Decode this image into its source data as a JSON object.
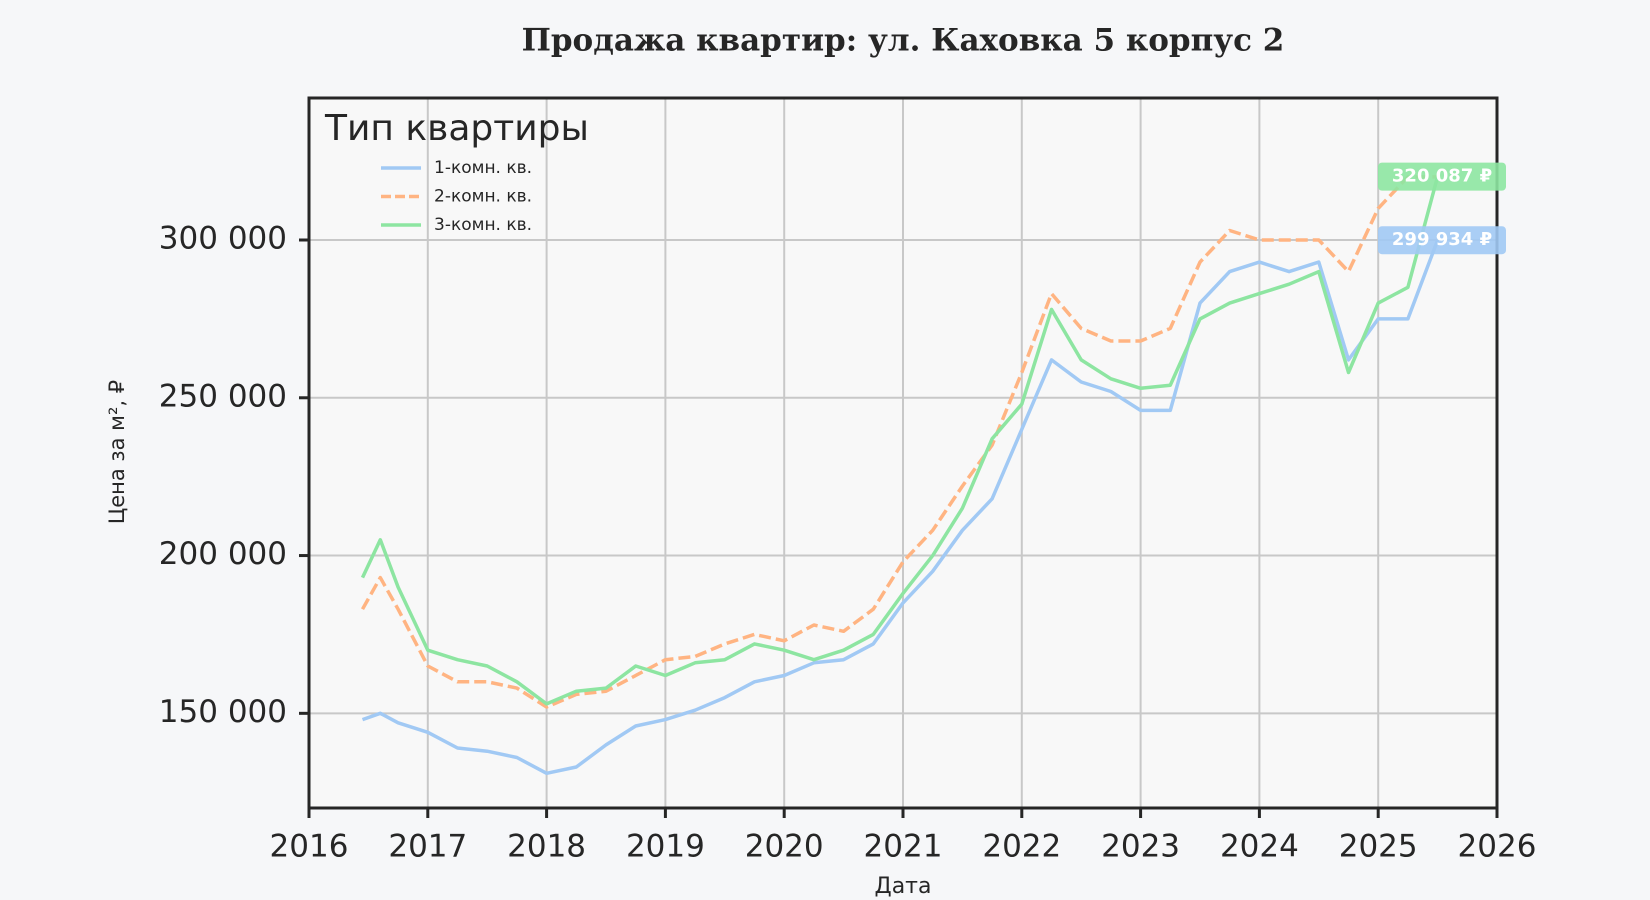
{
  "chart_data": {
    "type": "line",
    "title": "Продажа квартир: ул. Каховка 5 корпус 2",
    "x_label": "Дата",
    "y_label": "Цена за м², ₽",
    "legend_title": "Тип квартиры",
    "legend": "upper left",
    "grid": true,
    "x": [
      2016.45,
      2016.6,
      2016.75,
      2017.0,
      2017.25,
      2017.5,
      2017.75,
      2018.0,
      2018.25,
      2018.5,
      2018.75,
      2019.0,
      2019.25,
      2019.5,
      2019.75,
      2020.0,
      2020.25,
      2020.5,
      2020.75,
      2021.0,
      2021.25,
      2021.5,
      2021.75,
      2022.0,
      2022.25,
      2022.5,
      2022.75,
      2023.0,
      2023.25,
      2023.5,
      2023.75,
      2024.0,
      2024.25,
      2024.5,
      2024.75,
      2025.0,
      2025.25,
      2025.5
    ],
    "xlim": [
      2016,
      2026
    ],
    "xticks": [
      2016,
      2017,
      2018,
      2019,
      2020,
      2021,
      2022,
      2023,
      2024,
      2025,
      2026
    ],
    "ylim": [
      120000,
      345000
    ],
    "yticks": [
      {
        "value": 150000,
        "label": "150 000"
      },
      {
        "value": 200000,
        "label": "200 000"
      },
      {
        "value": 250000,
        "label": "250 000"
      },
      {
        "value": 300000,
        "label": "300 000"
      }
    ],
    "series": [
      {
        "name": "1-комн. кв.",
        "color": "#a1c9f4",
        "dashed": false,
        "values": [
          148000,
          150000,
          147000,
          144000,
          139000,
          138000,
          136000,
          131000,
          133000,
          140000,
          146000,
          148000,
          151000,
          155000,
          160000,
          162000,
          166000,
          167000,
          172000,
          185000,
          195000,
          208000,
          218000,
          240000,
          262000,
          255000,
          252000,
          246000,
          246000,
          280000,
          290000,
          293000,
          290000,
          293000,
          262000,
          275000,
          275000,
          299934
        ],
        "value_labels": [
          null,
          null,
          null,
          null,
          null,
          null,
          null,
          null,
          null,
          null,
          null,
          null,
          null,
          null,
          null,
          null,
          null,
          null,
          null,
          null,
          null,
          null,
          null,
          null,
          null,
          null,
          null,
          null,
          null,
          null,
          null,
          null,
          null,
          null,
          null,
          null,
          null,
          "299 934 ₽"
        ]
      },
      {
        "name": "2-комн. кв.",
        "color": "#ffb482",
        "dashed": true,
        "values": [
          183000,
          193000,
          183000,
          165000,
          160000,
          160000,
          158000,
          152000,
          156000,
          157000,
          162000,
          167000,
          168000,
          172000,
          175000,
          173000,
          178000,
          176000,
          183000,
          198000,
          208000,
          222000,
          235000,
          258000,
          283000,
          272000,
          268000,
          268000,
          272000,
          293000,
          303000,
          300000,
          300000,
          300000,
          290000,
          310000,
          320000,
          320000
        ]
      },
      {
        "name": "3-комн. кв.",
        "color": "#8de5a1",
        "dashed": false,
        "values": [
          193000,
          205000,
          190000,
          170000,
          167000,
          165000,
          160000,
          153000,
          157000,
          158000,
          165000,
          162000,
          166000,
          167000,
          172000,
          170000,
          167000,
          170000,
          175000,
          188000,
          200000,
          215000,
          237000,
          248000,
          278000,
          262000,
          256000,
          253000,
          254000,
          275000,
          280000,
          283000,
          286000,
          290000,
          258000,
          280000,
          285000,
          320087
        ],
        "value_labels": [
          null,
          null,
          null,
          null,
          null,
          null,
          null,
          null,
          null,
          null,
          null,
          null,
          null,
          null,
          null,
          null,
          null,
          null,
          null,
          null,
          null,
          null,
          null,
          null,
          null,
          null,
          null,
          null,
          null,
          null,
          null,
          null,
          null,
          null,
          null,
          null,
          null,
          "320 087 ₽"
        ]
      }
    ]
  }
}
